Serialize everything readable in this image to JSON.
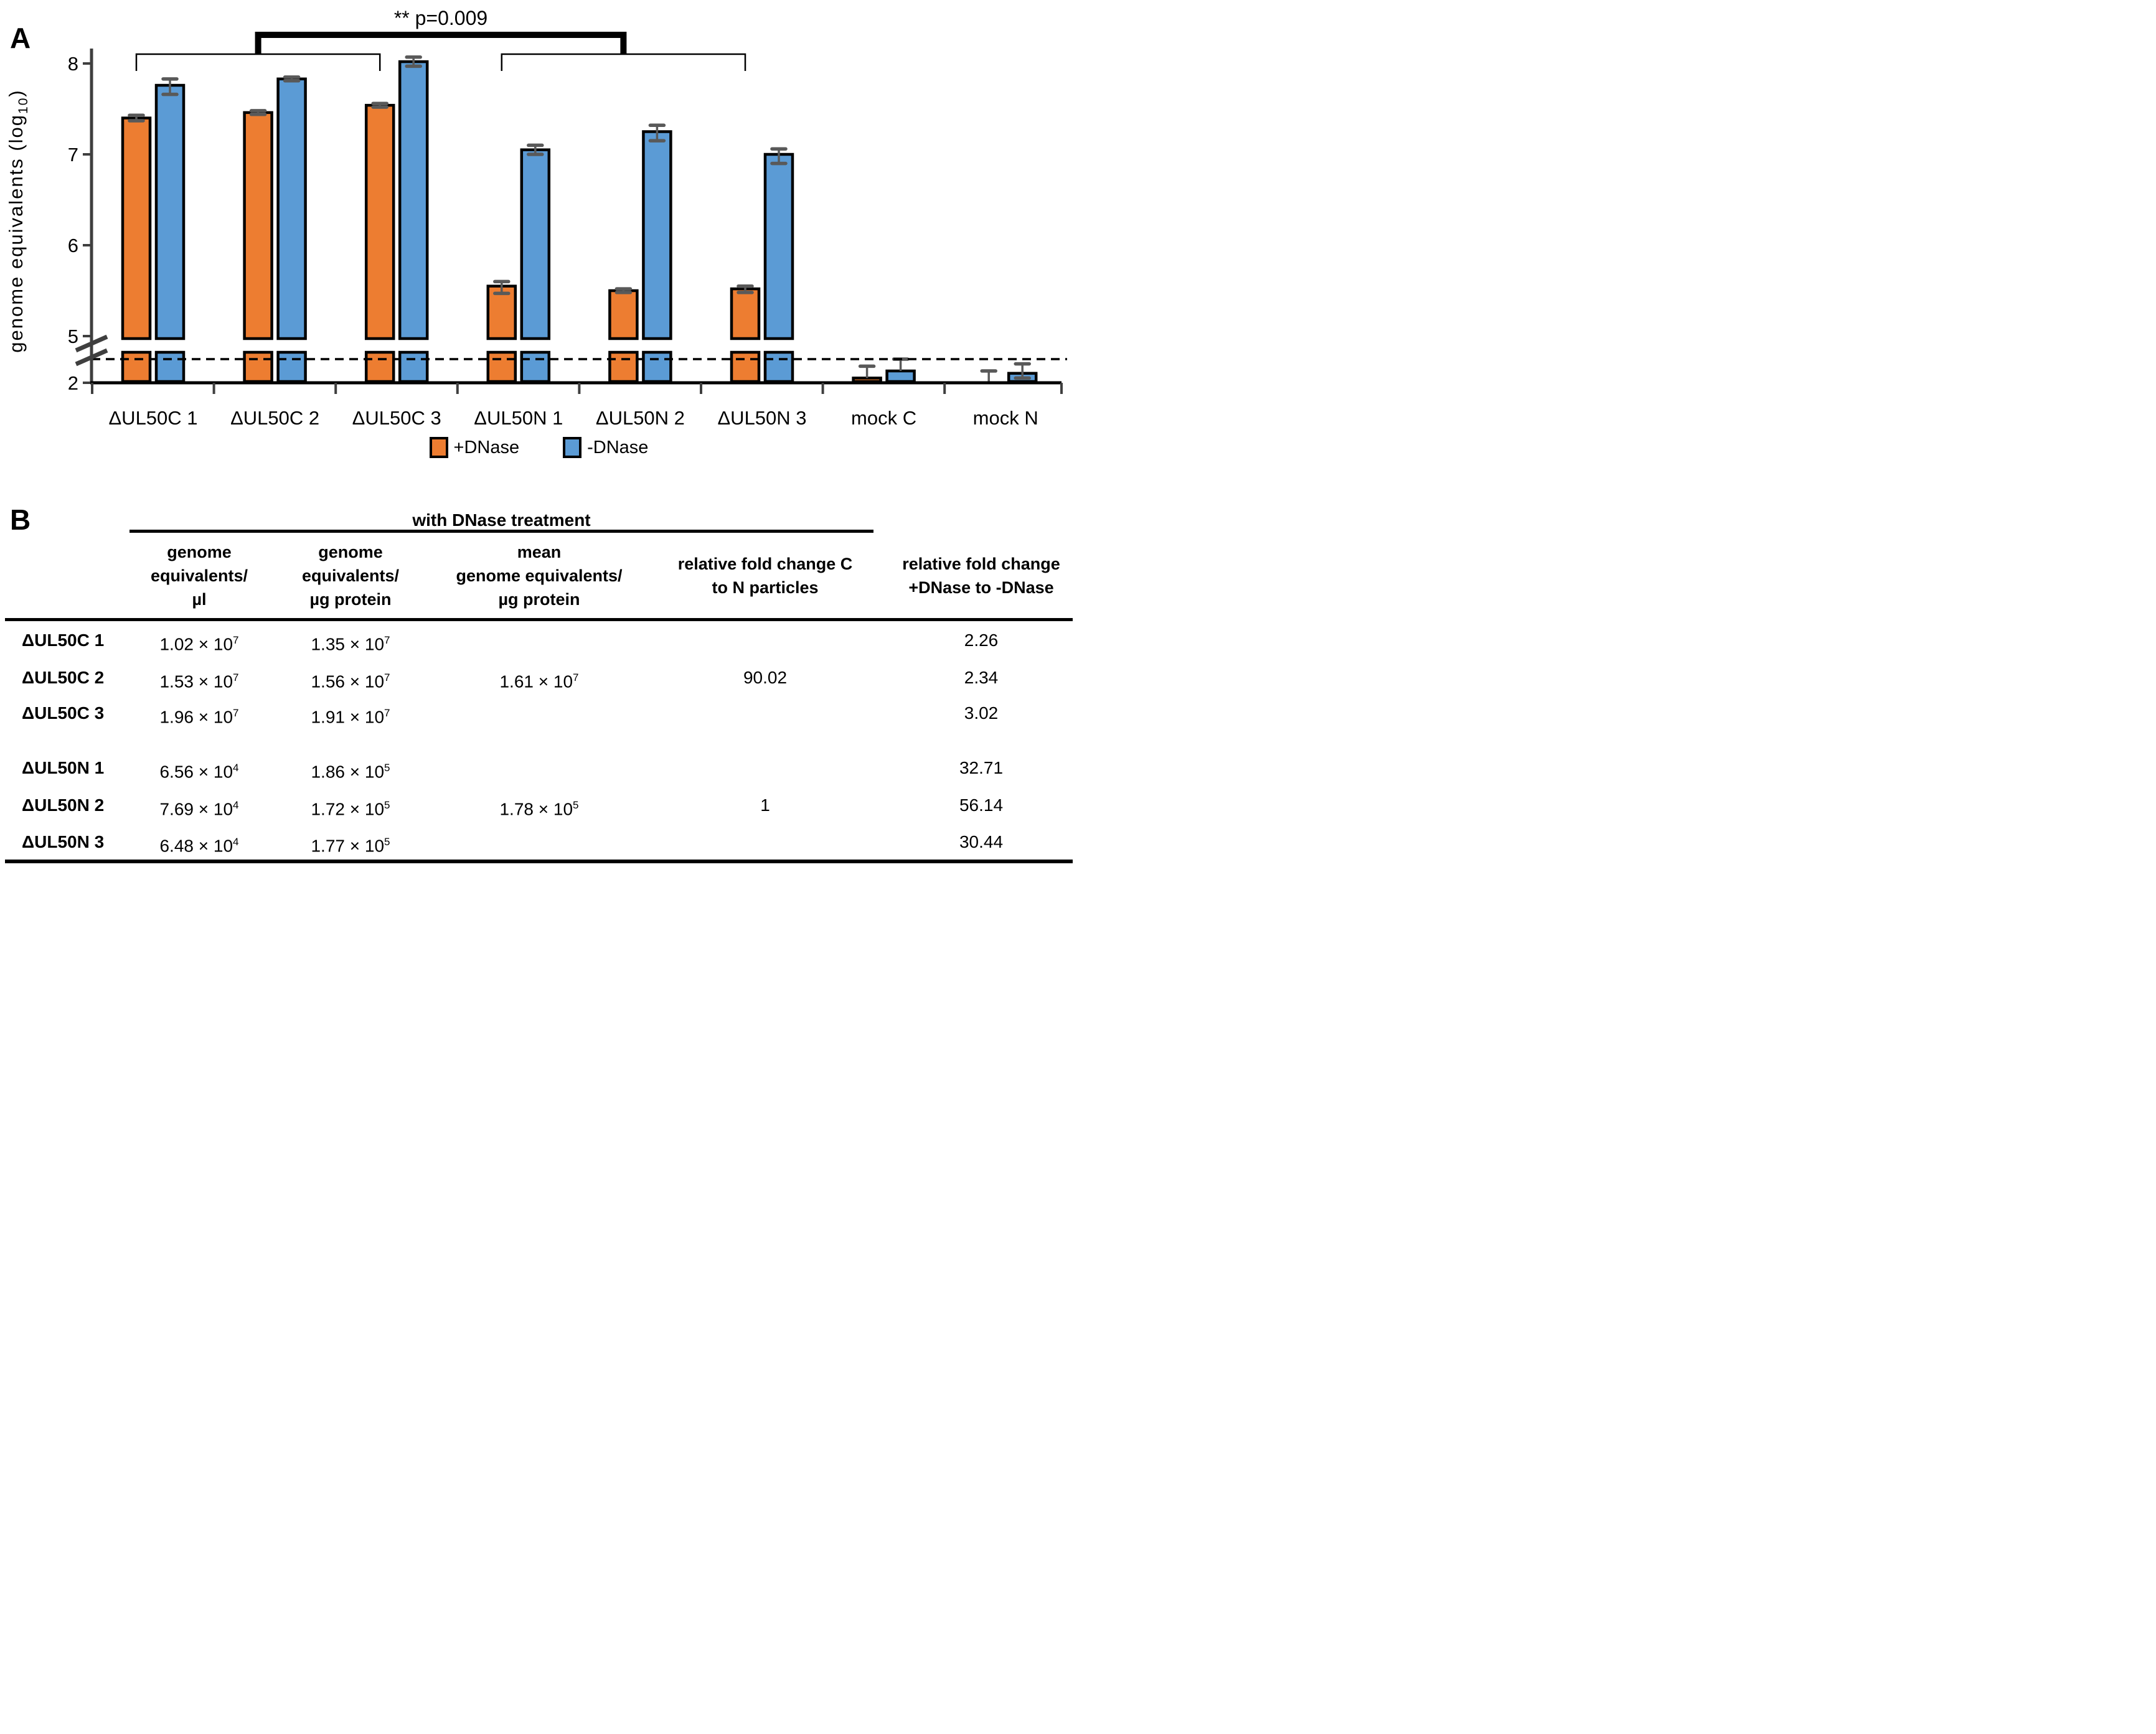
{
  "panel_a": {
    "label": "A",
    "legend": [
      {
        "label": "+DNase",
        "color": "#ED7D31"
      },
      {
        "label": "-DNase",
        "color": "#5B9BD5"
      }
    ]
  },
  "panel_b": {
    "label": "B"
  },
  "chart_data": [
    {
      "type": "bar",
      "title": "",
      "ylabel": "genome equivalents (log10)",
      "ylabel_parts": {
        "pre": "genome equivalents (log",
        "sub": "10",
        "post": ")"
      },
      "yticks_upper": [
        8,
        7,
        6,
        5
      ],
      "ytick_bottom": 2,
      "axis_break_between": [
        2,
        5
      ],
      "upper_axis_range": [
        5,
        8.25
      ],
      "dashed_detection_limit_line": true,
      "grid": false,
      "legend_position": "bottom",
      "categories": [
        "ΔUL50C 1",
        "ΔUL50C 2",
        "ΔUL50C 3",
        "ΔUL50N 1",
        "ΔUL50N 2",
        "ΔUL50N 3",
        "mock C",
        "mock N"
      ],
      "series": [
        {
          "name": "+DNase",
          "color": "#ED7D31",
          "values_log10": [
            7.4,
            7.46,
            7.54,
            5.55,
            5.5,
            5.52,
            2.1,
            null
          ],
          "err_up": [
            0.03,
            0.02,
            0.02,
            0.05,
            0.02,
            0.03,
            0.25,
            0.25
          ],
          "err_down": [
            0.03,
            0.02,
            0.02,
            0.08,
            0.02,
            0.04,
            0,
            0
          ]
        },
        {
          "name": "-DNase",
          "color": "#5B9BD5",
          "values_log10": [
            7.76,
            7.83,
            8.02,
            7.05,
            7.25,
            7.0,
            2.25,
            2.2
          ],
          "err_up": [
            0.07,
            0.02,
            0.05,
            0.05,
            0.07,
            0.06,
            0.25,
            0.2
          ],
          "err_down": [
            0.1,
            0.02,
            0.05,
            0.05,
            0.1,
            0.1,
            0,
            0.1
          ]
        }
      ],
      "significance": {
        "label": "** p=0.009",
        "left_group_indices": [
          0,
          1,
          2
        ],
        "right_group_indices": [
          3,
          4,
          5
        ],
        "anchored_to_series": "+DNase"
      }
    },
    {
      "type": "table",
      "span_header": {
        "text": "with DNase treatment",
        "covers_columns": [
          0,
          1,
          2,
          3
        ]
      },
      "times_symbol": "×",
      "columns": [
        {
          "header_lines": [
            "genome",
            "equivalents/",
            "µl"
          ]
        },
        {
          "header_lines": [
            "genome",
            "equivalents/",
            "µg protein"
          ]
        },
        {
          "header_lines": [
            "mean",
            "genome equivalents/",
            "µg protein"
          ]
        },
        {
          "header_lines": [
            "relative fold change C",
            "to N particles"
          ]
        },
        {
          "header_lines": [
            "relative fold change",
            "+DNase to -DNase"
          ]
        }
      ],
      "rows": [
        {
          "label": "ΔUL50C 1",
          "gap_before": false,
          "cells": [
            {
              "mantissa": "1.02",
              "exponent": "7"
            },
            {
              "mantissa": "1.35",
              "exponent": "7"
            },
            null,
            null,
            {
              "text": "2.26"
            }
          ]
        },
        {
          "label": "ΔUL50C 2",
          "gap_before": false,
          "cells": [
            {
              "mantissa": "1.53",
              "exponent": "7"
            },
            {
              "mantissa": "1.56",
              "exponent": "7"
            },
            {
              "mantissa": "1.61",
              "exponent": "7"
            },
            {
              "text": "90.02"
            },
            {
              "text": "2.34"
            }
          ]
        },
        {
          "label": "ΔUL50C 3",
          "gap_before": false,
          "cells": [
            {
              "mantissa": "1.96",
              "exponent": "7"
            },
            {
              "mantissa": "1.91",
              "exponent": "7"
            },
            null,
            null,
            {
              "text": "3.02"
            }
          ]
        },
        {
          "label": "ΔUL50N 1",
          "gap_before": true,
          "cells": [
            {
              "mantissa": "6.56",
              "exponent": "4"
            },
            {
              "mantissa": "1.86",
              "exponent": "5"
            },
            null,
            null,
            {
              "text": "32.71"
            }
          ]
        },
        {
          "label": "ΔUL50N 2",
          "gap_before": false,
          "cells": [
            {
              "mantissa": "7.69",
              "exponent": "4"
            },
            {
              "mantissa": "1.72",
              "exponent": "5"
            },
            {
              "mantissa": "1.78",
              "exponent": "5"
            },
            {
              "text": "1"
            },
            {
              "text": "56.14"
            }
          ]
        },
        {
          "label": "ΔUL50N 3",
          "gap_before": false,
          "cells": [
            {
              "mantissa": "6.48",
              "exponent": "4"
            },
            {
              "mantissa": "1.77",
              "exponent": "5"
            },
            null,
            null,
            {
              "text": "30.44"
            }
          ]
        }
      ]
    }
  ]
}
